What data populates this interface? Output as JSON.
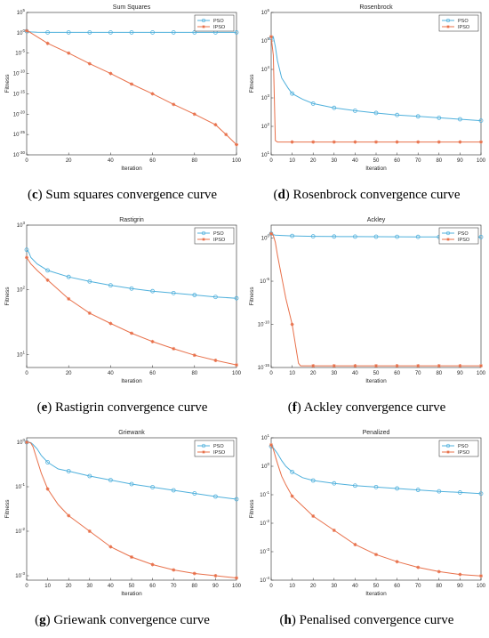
{
  "colors": {
    "pso": "#4fb0dc",
    "ipso": "#e8704a",
    "axis": "#262626"
  },
  "legend_labels": [
    "PSO",
    "IPSO"
  ],
  "panels": [
    {
      "letter": "c",
      "caption": "Sum squares convergence curve",
      "chart_data": {
        "type": "line",
        "title": "Sum Squares",
        "xlabel": "Iteration",
        "ylabel": "Fitness",
        "yscale": "log",
        "xlim": [
          0,
          100
        ],
        "ylim_exp": [
          -30,
          5
        ],
        "xticks": [
          "0",
          "20",
          "40",
          "60",
          "80",
          "100"
        ],
        "yticks": [
          "10^5",
          "10^0",
          "10^-5",
          "10^-10",
          "10^-15",
          "10^-20",
          "10^-25",
          "10^-30"
        ],
        "legend": "top-right",
        "series": [
          {
            "name": "PSO",
            "marker": "circle",
            "x": [
              0,
              1,
              2,
              5,
              10,
              20,
              30,
              40,
              50,
              60,
              70,
              80,
              90,
              100
            ],
            "log_y": [
              0.4,
              0.3,
              0.2,
              0.15,
              0.1,
              0.1,
              0.1,
              0.1,
              0.1,
              0.1,
              0.1,
              0.1,
              0.1,
              0.1
            ]
          },
          {
            "name": "IPSO",
            "marker": "star",
            "x": [
              0,
              1,
              2,
              10,
              20,
              30,
              40,
              50,
              60,
              70,
              80,
              90,
              95,
              100
            ],
            "log_y": [
              0.5,
              0.3,
              0,
              -2.6,
              -5,
              -7.6,
              -10,
              -12.6,
              -15,
              -17.6,
              -20,
              -22.6,
              -25,
              -27.5
            ]
          }
        ]
      }
    },
    {
      "letter": "d",
      "caption": "Rosenbrock convergence curve",
      "chart_data": {
        "type": "line",
        "title": "Rosenbrock",
        "xlabel": "Iteration",
        "ylabel": "Fitness",
        "yscale": "log",
        "xlim": [
          0,
          100
        ],
        "ylim_exp": [
          1,
          6
        ],
        "xticks": [
          "0",
          "10",
          "20",
          "30",
          "40",
          "50",
          "60",
          "70",
          "80",
          "90",
          "100"
        ],
        "yticks": [
          "10^6",
          "10^5",
          "10^4",
          "10^3",
          "10^2",
          "10^1"
        ],
        "legend": "top-right",
        "series": [
          {
            "name": "PSO",
            "marker": "circle",
            "x": [
              0,
              1,
              2,
              3,
              5,
              8,
              10,
              15,
              20,
              30,
              40,
              50,
              60,
              70,
              80,
              90,
              100
            ],
            "log_y": [
              5.1,
              5.15,
              4.8,
              4.3,
              3.7,
              3.35,
              3.15,
              2.95,
              2.8,
              2.65,
              2.55,
              2.47,
              2.4,
              2.35,
              2.3,
              2.25,
              2.2
            ]
          },
          {
            "name": "IPSO",
            "marker": "star",
            "x": [
              0,
              1,
              2,
              3,
              10,
              20,
              30,
              40,
              50,
              60,
              70,
              80,
              90,
              100
            ],
            "log_y": [
              5.15,
              4.5,
              1.5,
              1.45,
              1.45,
              1.45,
              1.45,
              1.45,
              1.45,
              1.45,
              1.45,
              1.45,
              1.45,
              1.45
            ]
          }
        ]
      }
    },
    {
      "letter": "e",
      "caption": "Rastigrin convergence curve",
      "chart_data": {
        "type": "line",
        "title": "Rastigrin",
        "xlabel": "Iteration",
        "ylabel": "Fitness",
        "yscale": "log",
        "xlim": [
          0,
          100
        ],
        "ylim_exp": [
          0.8,
          3
        ],
        "xticks": [
          "0",
          "20",
          "40",
          "60",
          "80",
          "100"
        ],
        "yticks": [
          "10^3",
          "10^2",
          "10^1"
        ],
        "legend": "top-right",
        "series": [
          {
            "name": "PSO",
            "marker": "circle",
            "x": [
              0,
              1,
              2,
              5,
              10,
              20,
              30,
              40,
              50,
              60,
              70,
              80,
              90,
              100
            ],
            "log_y": [
              2.62,
              2.58,
              2.5,
              2.4,
              2.3,
              2.2,
              2.13,
              2.07,
              2.02,
              1.98,
              1.95,
              1.92,
              1.89,
              1.87
            ]
          },
          {
            "name": "IPSO",
            "marker": "star",
            "x": [
              0,
              1,
              2,
              5,
              10,
              20,
              30,
              40,
              50,
              60,
              70,
              80,
              90,
              100
            ],
            "log_y": [
              2.5,
              2.45,
              2.4,
              2.3,
              2.15,
              1.86,
              1.64,
              1.48,
              1.33,
              1.2,
              1.09,
              0.99,
              0.91,
              0.84
            ]
          }
        ]
      }
    },
    {
      "letter": "f",
      "caption": "Ackley convergence curve",
      "chart_data": {
        "type": "line",
        "title": "Ackley",
        "xlabel": "Iteration",
        "ylabel": "Fitness",
        "yscale": "log",
        "xlim": [
          0,
          100
        ],
        "ylim_exp": [
          -15,
          1.5
        ],
        "xticks": [
          "0",
          "10",
          "20",
          "30",
          "40",
          "50",
          "60",
          "70",
          "80",
          "90",
          "100"
        ],
        "yticks": [
          "10^0",
          "10^-5",
          "10^-10",
          "10^-15"
        ],
        "legend": "top-right",
        "series": [
          {
            "name": "PSO",
            "marker": "circle",
            "x": [
              0,
              1,
              2,
              5,
              10,
              20,
              30,
              40,
              50,
              60,
              70,
              80,
              90,
              100
            ],
            "log_y": [
              0.5,
              0.4,
              0.35,
              0.3,
              0.25,
              0.2,
              0.18,
              0.17,
              0.16,
              0.15,
              0.14,
              0.13,
              0.12,
              0.12
            ]
          },
          {
            "name": "IPSO",
            "marker": "star",
            "x": [
              0,
              1,
              2,
              3,
              5,
              7,
              10,
              12,
              13,
              14,
              15,
              20,
              30,
              40,
              50,
              60,
              70,
              80,
              90,
              100
            ],
            "log_y": [
              0.5,
              0.3,
              -0.5,
              -2,
              -4.5,
              -7,
              -10,
              -13,
              -14.5,
              -14.8,
              -14.8,
              -14.8,
              -14.8,
              -14.8,
              -14.8,
              -14.8,
              -14.8,
              -14.8,
              -14.8,
              -14.8
            ]
          }
        ]
      }
    },
    {
      "letter": "g",
      "caption": "Griewank convergence curve",
      "chart_data": {
        "type": "line",
        "title": "Griewank",
        "xlabel": "Iteration",
        "ylabel": "Fitness",
        "yscale": "log",
        "xlim": [
          0,
          100
        ],
        "ylim_exp": [
          -3.1,
          0.1
        ],
        "xticks": [
          "0",
          "10",
          "20",
          "30",
          "40",
          "50",
          "60",
          "70",
          "80",
          "90",
          "100"
        ],
        "yticks": [
          "10^0",
          "10^-1",
          "10^-2",
          "10^-3"
        ],
        "legend": "top-right",
        "series": [
          {
            "name": "PSO",
            "marker": "circle",
            "x": [
              0,
              1,
              2,
              3,
              5,
              7,
              10,
              15,
              20,
              30,
              40,
              50,
              60,
              70,
              80,
              90,
              100
            ],
            "log_y": [
              0,
              0,
              -0.01,
              -0.05,
              -0.15,
              -0.3,
              -0.45,
              -0.6,
              -0.65,
              -0.76,
              -0.85,
              -0.94,
              -1.01,
              -1.08,
              -1.15,
              -1.22,
              -1.28
            ]
          },
          {
            "name": "IPSO",
            "marker": "star",
            "x": [
              0,
              1,
              2,
              3,
              5,
              7,
              10,
              15,
              20,
              30,
              40,
              50,
              60,
              70,
              80,
              90,
              100
            ],
            "log_y": [
              0,
              0,
              -0.02,
              -0.1,
              -0.4,
              -0.7,
              -1.05,
              -1.4,
              -1.65,
              -2.0,
              -2.35,
              -2.58,
              -2.75,
              -2.87,
              -2.95,
              -3.0,
              -3.05
            ]
          }
        ]
      }
    },
    {
      "letter": "h",
      "caption": "Penalised convergence curve",
      "chart_data": {
        "type": "line",
        "title": "Penalized",
        "xlabel": "Iteration",
        "ylabel": "Fitness",
        "yscale": "log",
        "xlim": [
          0,
          100
        ],
        "ylim_exp": [
          -4,
          1
        ],
        "xticks": [
          "0",
          "10",
          "20",
          "30",
          "40",
          "50",
          "60",
          "70",
          "80",
          "90",
          "100"
        ],
        "yticks": [
          "10^1",
          "10^0",
          "10^-1",
          "10^-2",
          "10^-3",
          "10^-4"
        ],
        "legend": "top-right",
        "series": [
          {
            "name": "PSO",
            "marker": "circle",
            "x": [
              0,
              1,
              2,
              3,
              5,
              7,
              10,
              15,
              20,
              30,
              40,
              50,
              60,
              70,
              80,
              90,
              100
            ],
            "log_y": [
              0.7,
              0.65,
              0.55,
              0.45,
              0.2,
              0,
              -0.2,
              -0.4,
              -0.5,
              -0.6,
              -0.68,
              -0.73,
              -0.78,
              -0.83,
              -0.88,
              -0.92,
              -0.96
            ]
          },
          {
            "name": "IPSO",
            "marker": "star",
            "x": [
              0,
              1,
              2,
              3,
              5,
              7,
              10,
              15,
              20,
              30,
              40,
              50,
              60,
              70,
              80,
              90,
              100
            ],
            "log_y": [
              0.75,
              0.6,
              0.35,
              0.1,
              -0.35,
              -0.65,
              -1.05,
              -1.4,
              -1.75,
              -2.25,
              -2.75,
              -3.1,
              -3.35,
              -3.55,
              -3.7,
              -3.8,
              -3.85
            ]
          }
        ]
      }
    }
  ]
}
